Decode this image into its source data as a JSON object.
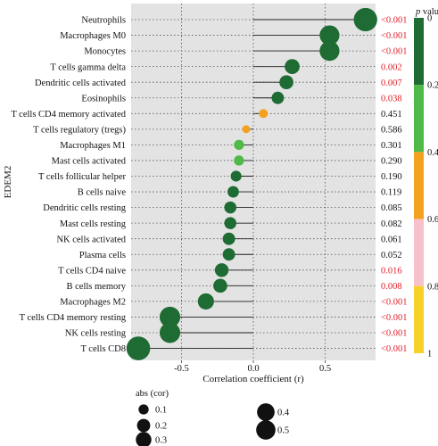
{
  "chart_data": {
    "type": "scatter",
    "ylabel": "EDEM2",
    "xlabel": "Correlation coefficient (r)",
    "xlim": [
      -0.85,
      0.85
    ],
    "xticks": [
      -0.5,
      0.0,
      0.5
    ],
    "xtick_labels": [
      "-0.5",
      "0.0",
      "0.5"
    ],
    "grid": true,
    "categories": [
      "Neutrophils",
      "Macrophages M0",
      "Monocytes",
      "T cells gamma delta",
      "Dendritic cells activated",
      "Eosinophils",
      "T cells CD4 memory activated",
      "T cells regulatory (tregs)",
      "Macrophages M1",
      "Mast cells activated",
      "T cells follicular helper",
      "B cells naive",
      "Dendritic cells resting",
      "Mast cells resting",
      "NK cells activated",
      "Plasma cells",
      "T cells CD4 naive",
      "B cells memory",
      "Macrophages M2",
      "T cells CD4 memory resting",
      "NK cells resting",
      "T cells CD8"
    ],
    "values": [
      0.78,
      0.53,
      0.53,
      0.27,
      0.23,
      0.17,
      0.07,
      -0.05,
      -0.1,
      -0.1,
      -0.12,
      -0.14,
      -0.16,
      -0.16,
      -0.17,
      -0.17,
      -0.22,
      -0.23,
      -0.33,
      -0.58,
      -0.58,
      -0.8
    ],
    "p_labels": [
      "<0.001",
      "<0.001",
      "<0.001",
      "0.002",
      "0.007",
      "0.038",
      "0.451",
      "0.586",
      "0.301",
      "0.290",
      "0.190",
      "0.119",
      "0.085",
      "0.082",
      "0.061",
      "0.052",
      "0.016",
      "0.008",
      "<0.001",
      "<0.001",
      "<0.001",
      "<0.001"
    ],
    "p_values": [
      0.0005,
      0.0005,
      0.0005,
      0.002,
      0.007,
      0.038,
      0.451,
      0.586,
      0.301,
      0.29,
      0.19,
      0.119,
      0.085,
      0.082,
      0.061,
      0.052,
      0.016,
      0.008,
      0.0005,
      0.0005,
      0.0005,
      0.0005
    ],
    "p_significant_color": "#e0202a",
    "p_normal_color": "#111111",
    "colorbar": {
      "title_italic": "p",
      "title_rest": " value",
      "ticks": [
        "0",
        "0.2",
        "0.4",
        "0.6",
        "0.8",
        "1"
      ],
      "bands": [
        {
          "from": 0.0,
          "to": 0.2,
          "color": "#1e6b34"
        },
        {
          "from": 0.2,
          "to": 0.4,
          "color": "#4fba47"
        },
        {
          "from": 0.4,
          "to": 0.6,
          "color": "#f3a21f"
        },
        {
          "from": 0.6,
          "to": 0.8,
          "color": "#f7c1cb"
        },
        {
          "from": 0.8,
          "to": 1.0,
          "color": "#f6d12a"
        }
      ]
    },
    "size_legend": {
      "title": "abs (cor)",
      "entries": [
        {
          "label": "0.1",
          "value": 0.1
        },
        {
          "label": "0.2",
          "value": 0.2
        },
        {
          "label": "0.3",
          "value": 0.3
        },
        {
          "label": "0.4",
          "value": 0.4
        },
        {
          "label": "0.5",
          "value": 0.5
        }
      ]
    }
  }
}
